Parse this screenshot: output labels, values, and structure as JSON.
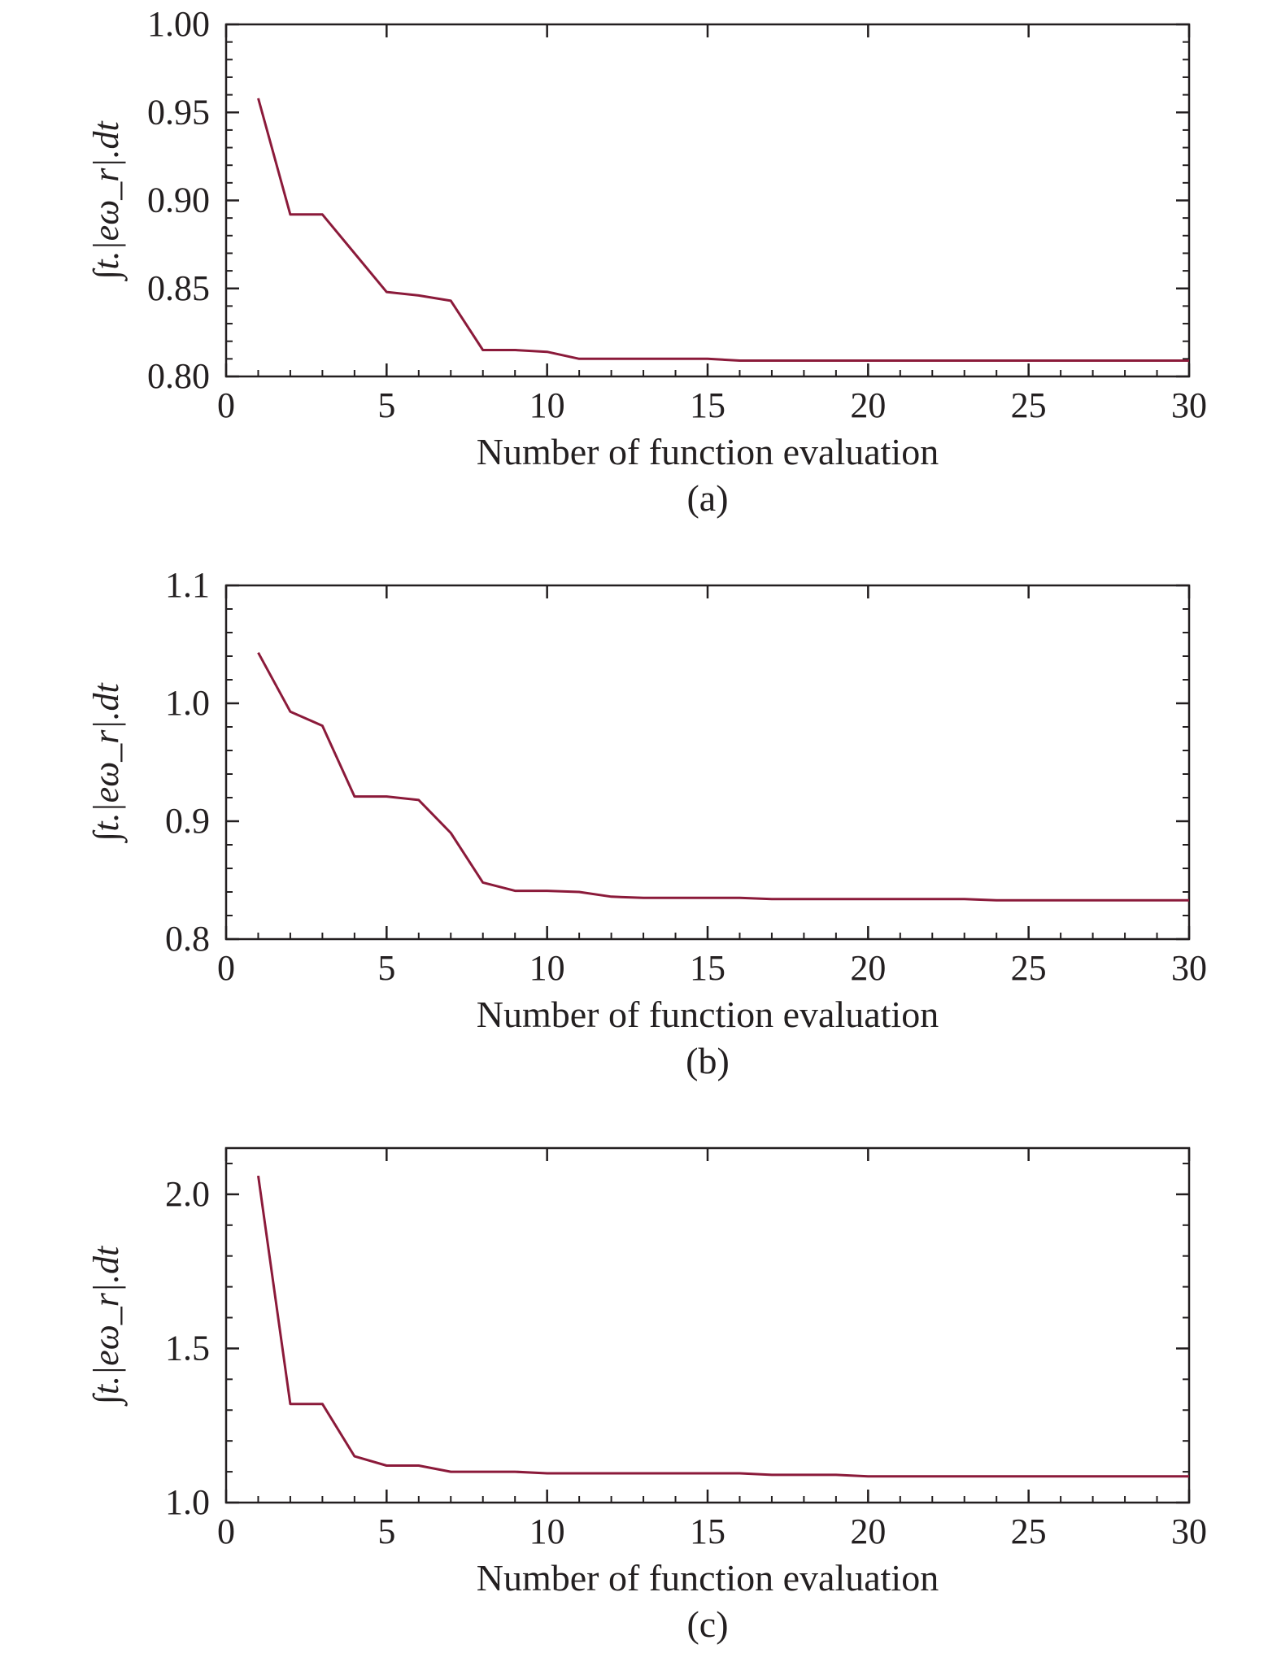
{
  "figure": {
    "line_color": "#8b1a3a",
    "axis_color": "#231f20"
  },
  "chart_data": [
    {
      "type": "line",
      "panel_label": "(a)",
      "xlabel": "Number of function evaluation",
      "ylabel": "∫t.|eω_r|.dt",
      "xlim": [
        0,
        30
      ],
      "ylim": [
        0.8,
        1.0
      ],
      "xticks": [
        0,
        5,
        10,
        15,
        20,
        25,
        30
      ],
      "xtick_labels": [
        "0",
        "5",
        "10",
        "15",
        "20",
        "25",
        "30"
      ],
      "yticks": [
        0.8,
        0.85,
        0.9,
        0.95,
        1.0
      ],
      "ytick_labels": [
        "0.80",
        "0.85",
        "0.90",
        "0.95",
        "1.00"
      ],
      "y_minor_step": 0.01,
      "grid": false,
      "series": [
        {
          "x": [
            1,
            2,
            3,
            4,
            5,
            6,
            7,
            8,
            9,
            10,
            11,
            12,
            13,
            14,
            15,
            16,
            17,
            18,
            19,
            20,
            21,
            22,
            23,
            24,
            25,
            26,
            27,
            28,
            29,
            30
          ],
          "y": [
            0.958,
            0.892,
            0.892,
            0.87,
            0.848,
            0.846,
            0.843,
            0.815,
            0.815,
            0.814,
            0.81,
            0.81,
            0.81,
            0.81,
            0.81,
            0.809,
            0.809,
            0.809,
            0.809,
            0.809,
            0.809,
            0.809,
            0.809,
            0.809,
            0.809,
            0.809,
            0.809,
            0.809,
            0.809,
            0.809
          ]
        }
      ]
    },
    {
      "type": "line",
      "panel_label": "(b)",
      "xlabel": "Number of function evaluation",
      "ylabel": "∫t.|eω_r|.dt",
      "xlim": [
        0,
        30
      ],
      "ylim": [
        0.8,
        1.1
      ],
      "xticks": [
        0,
        5,
        10,
        15,
        20,
        25,
        30
      ],
      "xtick_labels": [
        "0",
        "5",
        "10",
        "15",
        "20",
        "25",
        "30"
      ],
      "yticks": [
        0.8,
        0.9,
        1.0,
        1.1
      ],
      "ytick_labels": [
        "0.8",
        "0.9",
        "1.0",
        "1.1"
      ],
      "y_minor_step": 0.02,
      "grid": false,
      "series": [
        {
          "x": [
            1,
            2,
            3,
            4,
            5,
            6,
            7,
            8,
            9,
            10,
            11,
            12,
            13,
            14,
            15,
            16,
            17,
            18,
            19,
            20,
            21,
            22,
            23,
            24,
            25,
            26,
            27,
            28,
            29,
            30
          ],
          "y": [
            1.043,
            0.993,
            0.981,
            0.921,
            0.921,
            0.918,
            0.89,
            0.848,
            0.841,
            0.841,
            0.84,
            0.836,
            0.835,
            0.835,
            0.835,
            0.835,
            0.834,
            0.834,
            0.834,
            0.834,
            0.834,
            0.834,
            0.834,
            0.833,
            0.833,
            0.833,
            0.833,
            0.833,
            0.833,
            0.833
          ]
        }
      ]
    },
    {
      "type": "line",
      "panel_label": "(c)",
      "xlabel": "Number of function evaluation",
      "ylabel": "∫t.|eω_r|.dt",
      "xlim": [
        0,
        30
      ],
      "ylim": [
        1.0,
        2.15
      ],
      "xticks": [
        0,
        5,
        10,
        15,
        20,
        25,
        30
      ],
      "xtick_labels": [
        "0",
        "5",
        "10",
        "15",
        "20",
        "25",
        "30"
      ],
      "yticks": [
        1.0,
        1.5,
        2.0
      ],
      "ytick_labels": [
        "1.0",
        "1.5",
        "2.0"
      ],
      "y_minor_step": 0.1,
      "grid": false,
      "series": [
        {
          "x": [
            1,
            2,
            3,
            4,
            5,
            6,
            7,
            8,
            9,
            10,
            11,
            12,
            13,
            14,
            15,
            16,
            17,
            18,
            19,
            20,
            21,
            22,
            23,
            24,
            25,
            26,
            27,
            28,
            29,
            30
          ],
          "y": [
            2.06,
            1.32,
            1.32,
            1.15,
            1.12,
            1.12,
            1.1,
            1.1,
            1.1,
            1.095,
            1.095,
            1.095,
            1.095,
            1.095,
            1.095,
            1.095,
            1.09,
            1.09,
            1.09,
            1.085,
            1.085,
            1.085,
            1.085,
            1.085,
            1.085,
            1.085,
            1.085,
            1.085,
            1.085,
            1.085
          ]
        }
      ]
    }
  ]
}
